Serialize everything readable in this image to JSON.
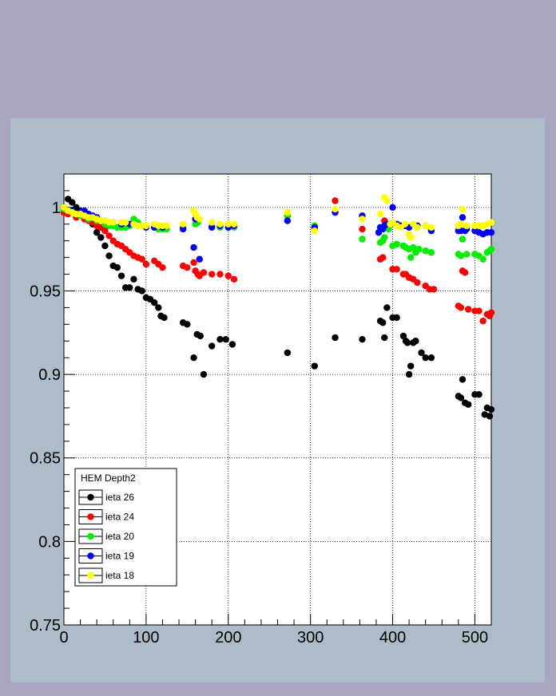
{
  "chart_data": {
    "type": "scatter",
    "title": "",
    "xlabel": "",
    "ylabel": "",
    "xlim": [
      0,
      520
    ],
    "ylim": [
      0.75,
      1.02
    ],
    "x_ticks": [
      "0",
      "100",
      "200",
      "300",
      "400",
      "500"
    ],
    "y_ticks": [
      "0.75",
      "0.8",
      "0.85",
      "0.9",
      "0.95",
      "1"
    ],
    "x_tick_values": [
      0,
      100,
      200,
      300,
      400,
      500
    ],
    "y_tick_values": [
      0.75,
      0.8,
      0.85,
      0.9,
      0.95,
      1.0
    ],
    "grid": true,
    "legend": {
      "title": "HEM Depth2",
      "placement": "bottom-left"
    },
    "series": [
      {
        "name": "ieta 26",
        "color": "#000000",
        "points": [
          [
            0,
            1.0
          ],
          [
            5,
            1.005
          ],
          [
            10,
            1.003
          ],
          [
            15,
            1.0
          ],
          [
            20,
            0.998
          ],
          [
            25,
            0.996
          ],
          [
            30,
            0.993
          ],
          [
            35,
            0.99
          ],
          [
            40,
            0.985
          ],
          [
            45,
            0.982
          ],
          [
            50,
            0.977
          ],
          [
            55,
            0.971
          ],
          [
            60,
            0.965
          ],
          [
            65,
            0.964
          ],
          [
            70,
            0.959
          ],
          [
            75,
            0.952
          ],
          [
            80,
            0.952
          ],
          [
            85,
            0.957
          ],
          [
            90,
            0.951
          ],
          [
            95,
            0.95
          ],
          [
            100,
            0.946
          ],
          [
            105,
            0.945
          ],
          [
            110,
            0.943
          ],
          [
            115,
            0.94
          ],
          [
            118,
            0.935
          ],
          [
            122,
            0.934
          ],
          [
            145,
            0.931
          ],
          [
            150,
            0.93
          ],
          [
            158,
            0.91
          ],
          [
            162,
            0.924
          ],
          [
            166,
            0.923
          ],
          [
            170,
            0.9
          ],
          [
            180,
            0.917
          ],
          [
            190,
            0.921
          ],
          [
            197,
            0.921
          ],
          [
            205,
            0.918
          ],
          [
            272,
            0.913
          ],
          [
            305,
            0.905
          ],
          [
            330,
            0.922
          ],
          [
            363,
            0.921
          ],
          [
            385,
            0.932
          ],
          [
            388,
            0.931
          ],
          [
            390,
            0.922
          ],
          [
            393,
            0.94
          ],
          [
            400,
            0.934
          ],
          [
            405,
            0.934
          ],
          [
            413,
            0.923
          ],
          [
            416,
            0.92
          ],
          [
            418,
            0.919
          ],
          [
            420,
            0.9
          ],
          [
            422,
            0.905
          ],
          [
            425,
            0.919
          ],
          [
            428,
            0.92
          ],
          [
            435,
            0.913
          ],
          [
            440,
            0.91
          ],
          [
            447,
            0.91
          ],
          [
            480,
            0.887
          ],
          [
            483,
            0.886
          ],
          [
            485,
            0.897
          ],
          [
            488,
            0.883
          ],
          [
            492,
            0.882
          ],
          [
            500,
            0.888
          ],
          [
            505,
            0.888
          ],
          [
            512,
            0.876
          ],
          [
            515,
            0.88
          ],
          [
            518,
            0.875
          ],
          [
            520,
            0.879
          ]
        ]
      },
      {
        "name": "ieta 24",
        "color": "#ff0000",
        "points": [
          [
            0,
            0.997
          ],
          [
            5,
            0.996
          ],
          [
            15,
            0.994
          ],
          [
            25,
            0.993
          ],
          [
            30,
            0.992
          ],
          [
            35,
            0.991
          ],
          [
            40,
            0.989
          ],
          [
            45,
            0.988
          ],
          [
            50,
            0.986
          ],
          [
            55,
            0.983
          ],
          [
            60,
            0.98
          ],
          [
            65,
            0.978
          ],
          [
            70,
            0.977
          ],
          [
            75,
            0.975
          ],
          [
            80,
            0.973
          ],
          [
            85,
            0.971
          ],
          [
            90,
            0.97
          ],
          [
            95,
            0.969
          ],
          [
            100,
            0.966
          ],
          [
            110,
            0.968
          ],
          [
            115,
            0.966
          ],
          [
            120,
            0.964
          ],
          [
            145,
            0.965
          ],
          [
            150,
            0.964
          ],
          [
            158,
            0.967
          ],
          [
            160,
            0.962
          ],
          [
            163,
            0.96
          ],
          [
            165,
            0.959
          ],
          [
            170,
            0.961
          ],
          [
            180,
            0.96
          ],
          [
            190,
            0.96
          ],
          [
            200,
            0.959
          ],
          [
            207,
            0.957
          ],
          [
            272,
            0.995
          ],
          [
            305,
            0.987
          ],
          [
            330,
            1.004
          ],
          [
            363,
            0.987
          ],
          [
            385,
            0.969
          ],
          [
            388,
            0.97
          ],
          [
            390,
            0.992
          ],
          [
            395,
            0.988
          ],
          [
            400,
            0.963
          ],
          [
            405,
            0.963
          ],
          [
            413,
            0.96
          ],
          [
            416,
            0.96
          ],
          [
            420,
            0.958
          ],
          [
            425,
            0.957
          ],
          [
            430,
            0.955
          ],
          [
            440,
            0.953
          ],
          [
            445,
            0.951
          ],
          [
            450,
            0.951
          ],
          [
            480,
            0.941
          ],
          [
            483,
            0.94
          ],
          [
            485,
            0.962
          ],
          [
            488,
            0.961
          ],
          [
            492,
            0.939
          ],
          [
            500,
            0.938
          ],
          [
            505,
            0.938
          ],
          [
            510,
            0.932
          ],
          [
            515,
            0.936
          ],
          [
            518,
            0.935
          ],
          [
            520,
            0.937
          ]
        ]
      },
      {
        "name": "ieta 20",
        "color": "#00ee00",
        "points": [
          [
            0,
            0.999
          ],
          [
            10,
            0.997
          ],
          [
            20,
            0.995
          ],
          [
            30,
            0.993
          ],
          [
            40,
            0.992
          ],
          [
            50,
            0.99
          ],
          [
            55,
            0.989
          ],
          [
            60,
            0.989
          ],
          [
            65,
            0.988
          ],
          [
            70,
            0.988
          ],
          [
            75,
            0.988
          ],
          [
            80,
            0.989
          ],
          [
            85,
            0.993
          ],
          [
            90,
            0.991
          ],
          [
            100,
            0.988
          ],
          [
            110,
            0.988
          ],
          [
            115,
            0.987
          ],
          [
            120,
            0.987
          ],
          [
            125,
            0.987
          ],
          [
            145,
            0.988
          ],
          [
            160,
            0.99
          ],
          [
            163,
            0.991
          ],
          [
            180,
            0.989
          ],
          [
            190,
            0.988
          ],
          [
            200,
            0.988
          ],
          [
            207,
            0.988
          ],
          [
            272,
            0.995
          ],
          [
            305,
            0.989
          ],
          [
            330,
            0.997
          ],
          [
            363,
            0.981
          ],
          [
            385,
            0.979
          ],
          [
            388,
            0.98
          ],
          [
            390,
            0.982
          ],
          [
            395,
            0.987
          ],
          [
            400,
            0.977
          ],
          [
            405,
            0.978
          ],
          [
            413,
            0.977
          ],
          [
            416,
            0.976
          ],
          [
            420,
            0.975
          ],
          [
            422,
            0.97
          ],
          [
            425,
            0.976
          ],
          [
            428,
            0.973
          ],
          [
            432,
            0.975
          ],
          [
            440,
            0.974
          ],
          [
            447,
            0.973
          ],
          [
            480,
            0.972
          ],
          [
            483,
            0.971
          ],
          [
            485,
            0.981
          ],
          [
            490,
            0.972
          ],
          [
            500,
            0.972
          ],
          [
            505,
            0.971
          ],
          [
            510,
            0.969
          ],
          [
            515,
            0.973
          ],
          [
            518,
            0.974
          ],
          [
            520,
            0.975
          ]
        ]
      },
      {
        "name": "ieta 19",
        "color": "#0000ff",
        "points": [
          [
            0,
            1.0
          ],
          [
            10,
            0.998
          ],
          [
            20,
            0.997
          ],
          [
            25,
            0.998
          ],
          [
            30,
            0.996
          ],
          [
            35,
            0.995
          ],
          [
            40,
            0.994
          ],
          [
            50,
            0.992
          ],
          [
            60,
            0.991
          ],
          [
            70,
            0.99
          ],
          [
            80,
            0.99
          ],
          [
            90,
            0.989
          ],
          [
            100,
            0.988
          ],
          [
            110,
            0.988
          ],
          [
            120,
            0.988
          ],
          [
            145,
            0.987
          ],
          [
            158,
            0.976
          ],
          [
            160,
            0.993
          ],
          [
            165,
            0.969
          ],
          [
            180,
            0.988
          ],
          [
            190,
            0.989
          ],
          [
            200,
            0.988
          ],
          [
            207,
            0.989
          ],
          [
            272,
            0.992
          ],
          [
            305,
            0.988
          ],
          [
            330,
            0.997
          ],
          [
            363,
            0.995
          ],
          [
            383,
            0.985
          ],
          [
            385,
            0.988
          ],
          [
            388,
            0.987
          ],
          [
            390,
            0.989
          ],
          [
            393,
            0.99
          ],
          [
            400,
            1.0
          ],
          [
            405,
            0.99
          ],
          [
            410,
            0.989
          ],
          [
            415,
            0.989
          ],
          [
            420,
            0.988
          ],
          [
            430,
            0.989
          ],
          [
            440,
            0.989
          ],
          [
            447,
            0.986
          ],
          [
            480,
            0.986
          ],
          [
            483,
            0.986
          ],
          [
            485,
            0.994
          ],
          [
            488,
            0.986
          ],
          [
            490,
            0.987
          ],
          [
            500,
            0.986
          ],
          [
            505,
            0.985
          ],
          [
            510,
            0.984
          ],
          [
            515,
            0.985
          ],
          [
            520,
            0.985
          ]
        ]
      },
      {
        "name": "ieta 18",
        "color": "#ffff00",
        "points": [
          [
            0,
            1.0
          ],
          [
            5,
            0.998
          ],
          [
            10,
            0.997
          ],
          [
            15,
            0.996
          ],
          [
            20,
            0.996
          ],
          [
            25,
            0.995
          ],
          [
            30,
            0.994
          ],
          [
            35,
            0.994
          ],
          [
            40,
            0.993
          ],
          [
            45,
            0.992
          ],
          [
            50,
            0.992
          ],
          [
            55,
            0.991
          ],
          [
            60,
            0.991
          ],
          [
            70,
            0.991
          ],
          [
            75,
            0.991
          ],
          [
            85,
            0.99
          ],
          [
            90,
            0.989
          ],
          [
            95,
            0.989
          ],
          [
            100,
            0.989
          ],
          [
            110,
            0.99
          ],
          [
            115,
            0.989
          ],
          [
            120,
            0.989
          ],
          [
            125,
            0.989
          ],
          [
            145,
            0.99
          ],
          [
            158,
            0.998
          ],
          [
            160,
            0.996
          ],
          [
            162,
            0.994
          ],
          [
            165,
            0.993
          ],
          [
            180,
            0.991
          ],
          [
            190,
            0.99
          ],
          [
            200,
            0.99
          ],
          [
            207,
            0.99
          ],
          [
            272,
            0.997
          ],
          [
            305,
            0.986
          ],
          [
            330,
            0.999
          ],
          [
            363,
            0.993
          ],
          [
            385,
            0.996
          ],
          [
            390,
            1.006
          ],
          [
            393,
            1.004
          ],
          [
            397,
            0.99
          ],
          [
            400,
            0.991
          ],
          [
            405,
            0.989
          ],
          [
            410,
            0.988
          ],
          [
            415,
            0.99
          ],
          [
            420,
            0.984
          ],
          [
            422,
            0.982
          ],
          [
            425,
            0.99
          ],
          [
            430,
            0.988
          ],
          [
            440,
            0.989
          ],
          [
            447,
            0.988
          ],
          [
            480,
            0.989
          ],
          [
            483,
            0.99
          ],
          [
            485,
            0.999
          ],
          [
            490,
            0.989
          ],
          [
            500,
            0.989
          ],
          [
            505,
            0.989
          ],
          [
            510,
            0.989
          ],
          [
            515,
            0.99
          ],
          [
            520,
            0.991
          ]
        ]
      }
    ]
  }
}
